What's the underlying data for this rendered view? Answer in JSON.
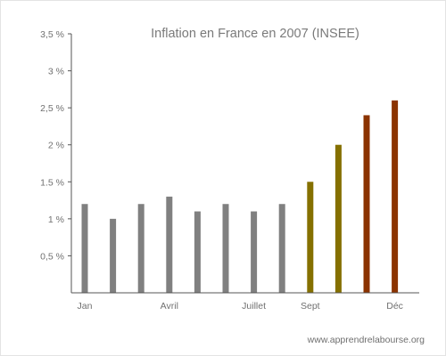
{
  "chart_data": {
    "type": "bar",
    "title": "Inflation en France en 2007 (INSEE)",
    "xlabel": "",
    "ylabel": "",
    "ylim": [
      0,
      3.5
    ],
    "grid": false,
    "legend": "none",
    "yticks": [
      0.5,
      1,
      1.5,
      2,
      2.5,
      3,
      3.5
    ],
    "ytick_labels": [
      "0,5 %",
      "1 %",
      "1.5 %",
      "2 %",
      "2,5 %",
      "3 %",
      "3,5 %"
    ],
    "x_tick_labels": [
      {
        "index": 0,
        "label": "Jan"
      },
      {
        "index": 3,
        "label": "Avril"
      },
      {
        "index": 6,
        "label": "Juillet"
      },
      {
        "index": 8,
        "label": "Sept"
      },
      {
        "index": 11,
        "label": "Déc"
      }
    ],
    "values": [
      1.2,
      1.0,
      1.2,
      1.3,
      1.1,
      1.2,
      1.1,
      1.2,
      1.5,
      2.0,
      2.4,
      2.6
    ],
    "bar_colors": [
      "#808080",
      "#808080",
      "#808080",
      "#808080",
      "#808080",
      "#808080",
      "#808080",
      "#808080",
      "#857000",
      "#857000",
      "#8b3300",
      "#8b3300"
    ]
  },
  "watermark": "www.apprendrelabourse.org",
  "colors": {
    "axis": "#555555",
    "gray_bar": "#808080",
    "olive_bar": "#857000",
    "brown_bar": "#8b3300"
  }
}
